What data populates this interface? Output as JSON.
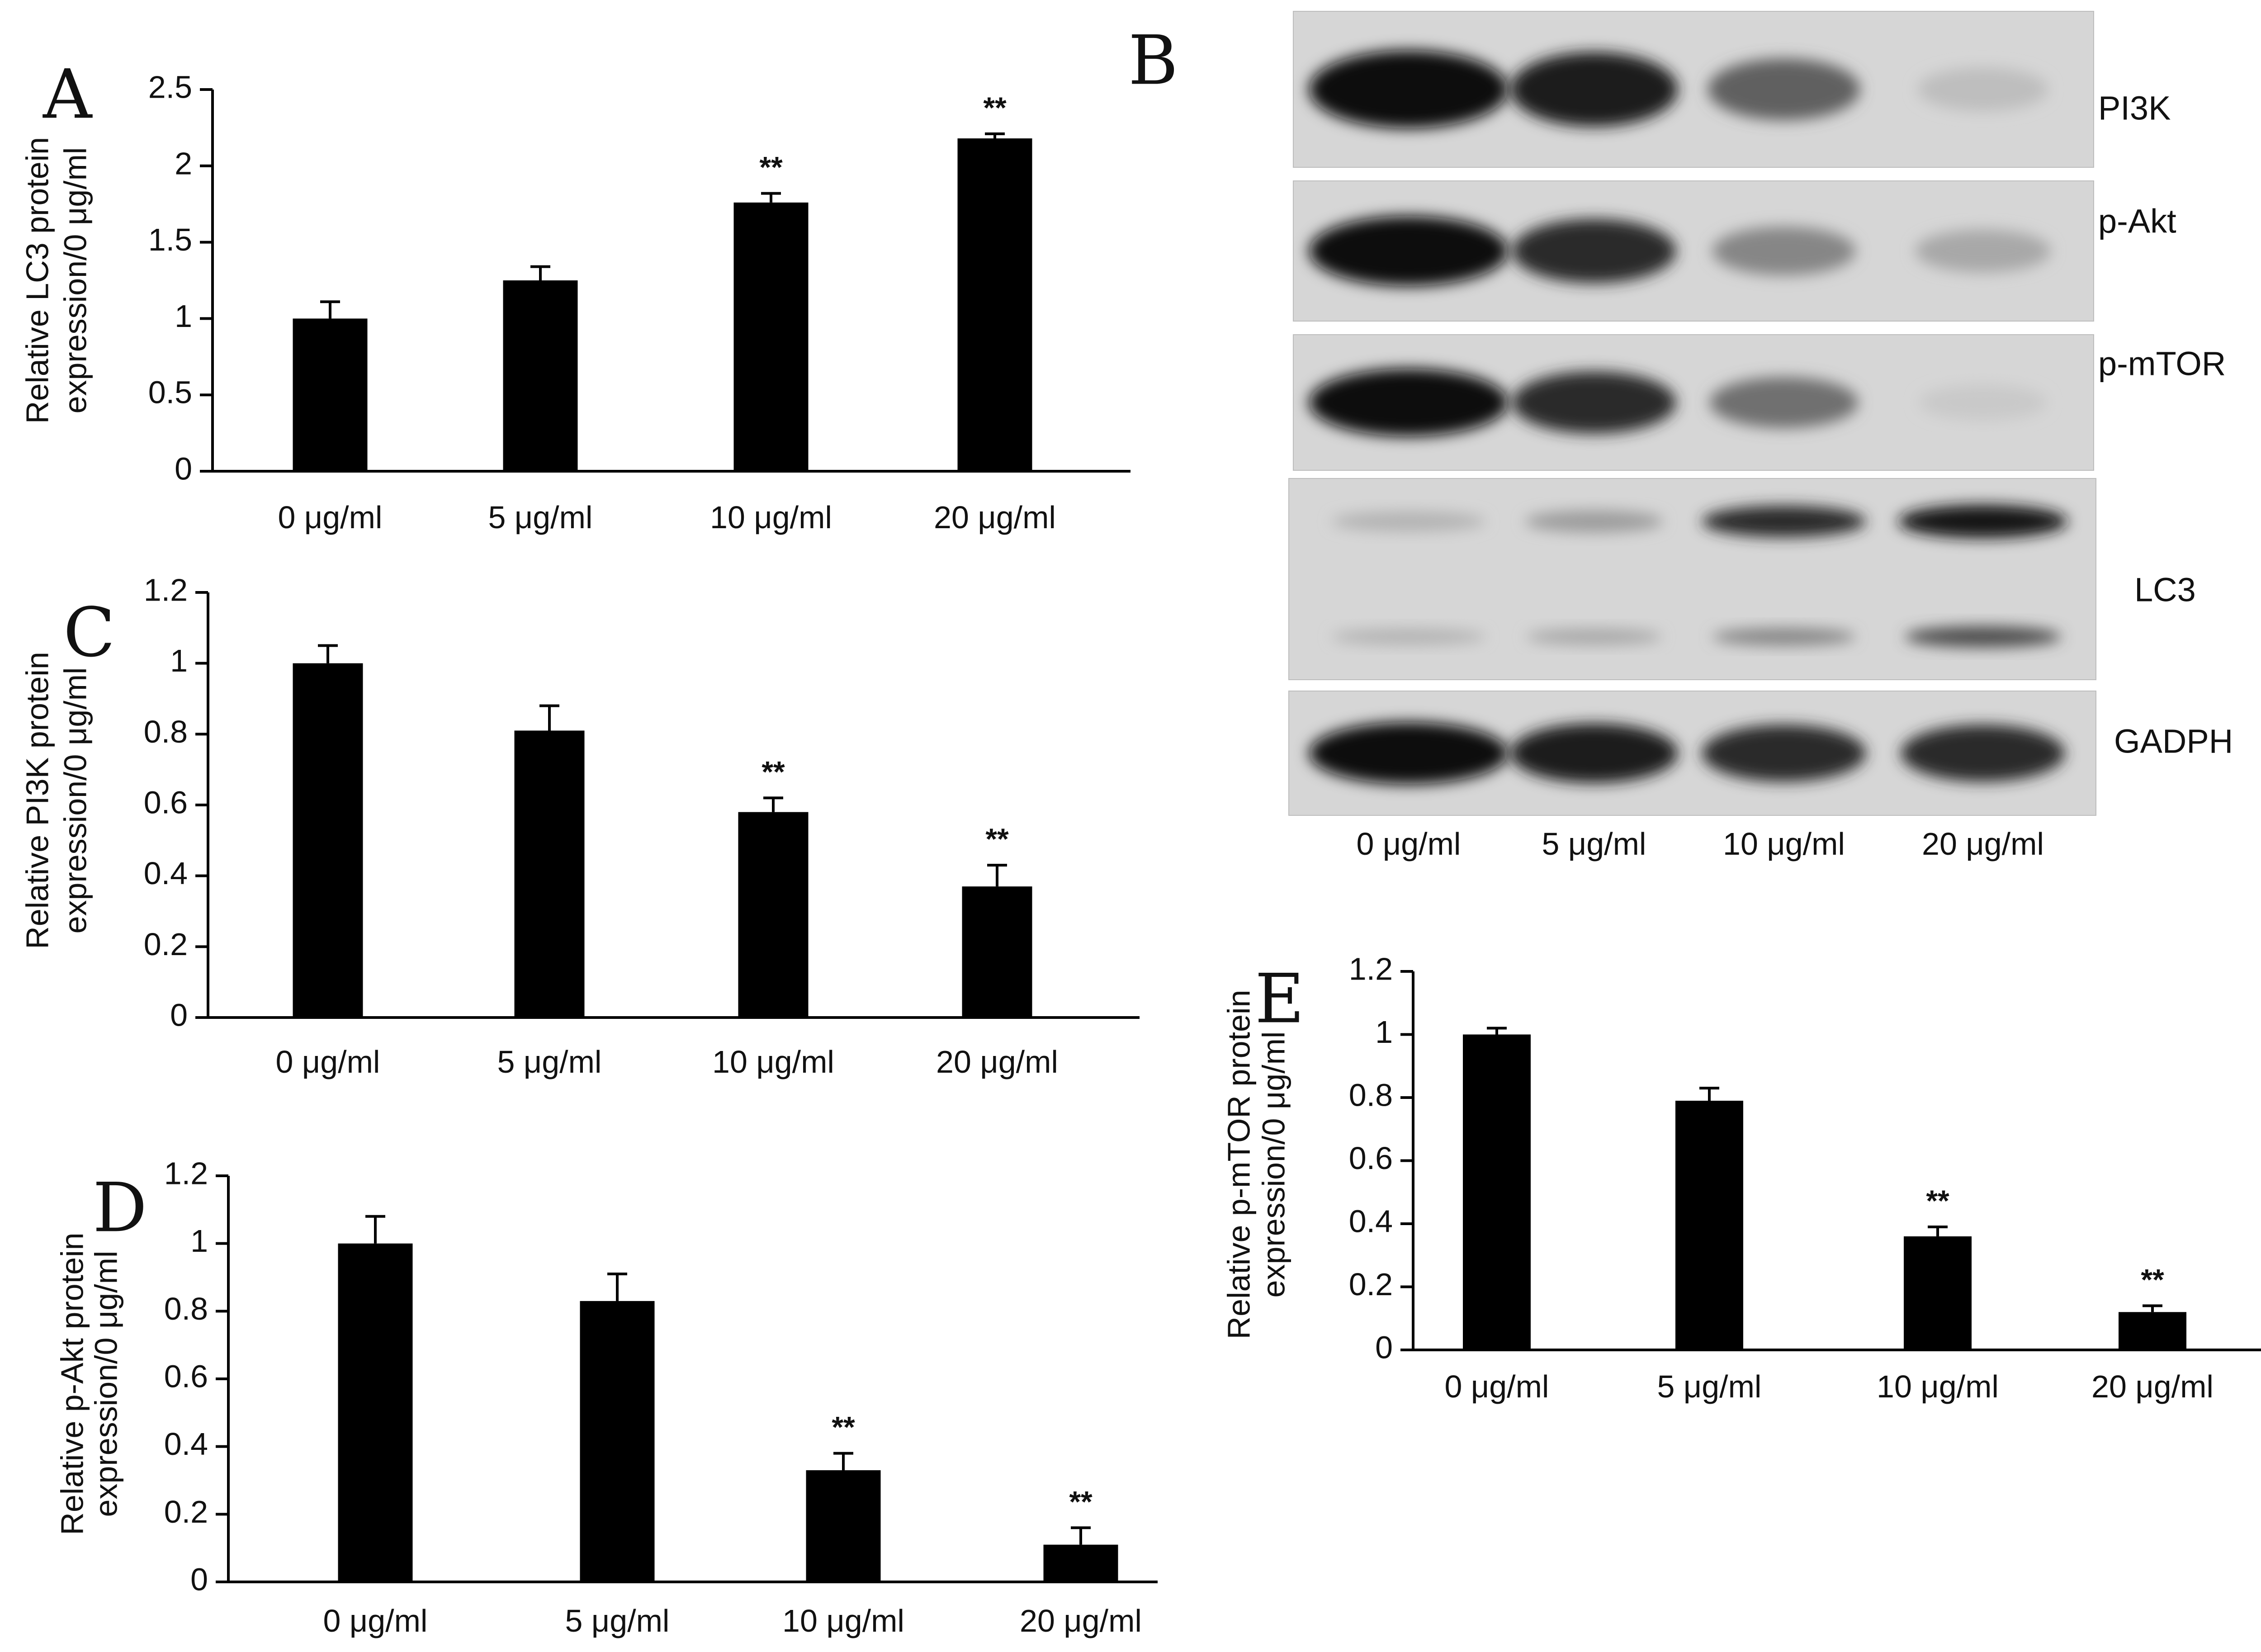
{
  "chart_data": [
    {
      "panel": "A",
      "type": "bar",
      "ylabel_lines": [
        "Relative LC3 protein",
        "expression/0 μg/ml"
      ],
      "categories": [
        "0 μg/ml",
        "5 μg/ml",
        "10 μg/ml",
        "20 μg/ml"
      ],
      "values": [
        1.0,
        1.25,
        1.76,
        2.18
      ],
      "errors": [
        0.11,
        0.09,
        0.06,
        0.03
      ],
      "significance": [
        "",
        "",
        "**",
        "**"
      ],
      "ylim": [
        0,
        2.5
      ],
      "yticks": [
        "0",
        "0.5",
        "1",
        "1.5",
        "2",
        "2.5"
      ]
    },
    {
      "panel": "C",
      "type": "bar",
      "ylabel_lines": [
        "Relative PI3K protein",
        "expression/0 μg/ml"
      ],
      "categories": [
        "0  μg/ml",
        "5  μg/ml",
        "10  μg/ml",
        "20  μg/ml"
      ],
      "values": [
        1.0,
        0.81,
        0.58,
        0.37
      ],
      "errors": [
        0.05,
        0.07,
        0.04,
        0.06
      ],
      "significance": [
        "",
        "",
        "**",
        "**"
      ],
      "ylim": [
        0,
        1.2
      ],
      "yticks": [
        "0",
        "0.2",
        "0.4",
        "0.6",
        "0.8",
        "1",
        "1.2"
      ]
    },
    {
      "panel": "D",
      "type": "bar",
      "ylabel_lines": [
        "Relative p-Akt protein",
        "expression/0 μg/ml"
      ],
      "categories": [
        "0 μg/ml",
        "5 μg/ml",
        "10  μg/ml",
        "20 μg/ml"
      ],
      "values": [
        1.0,
        0.83,
        0.33,
        0.11
      ],
      "errors": [
        0.08,
        0.08,
        0.05,
        0.05
      ],
      "significance": [
        "",
        "",
        "**",
        "**"
      ],
      "ylim": [
        0,
        1.2
      ],
      "yticks": [
        "0",
        "0.2",
        "0.4",
        "0.6",
        "0.8",
        "1",
        "1.2"
      ]
    },
    {
      "panel": "E",
      "type": "bar",
      "ylabel_lines": [
        "Relative p-mTOR protein",
        "expression/0 μg/ml"
      ],
      "categories": [
        "0 μg/ml",
        "5 μg/ml",
        "10 μg/ml",
        "20  μg/ml"
      ],
      "values": [
        1.0,
        0.79,
        0.36,
        0.12
      ],
      "errors": [
        0.02,
        0.04,
        0.03,
        0.02
      ],
      "significance": [
        "",
        "",
        "**",
        "**"
      ],
      "ylim": [
        0,
        1.2
      ],
      "yticks": [
        "0",
        "0.2",
        "0.4",
        "0.6",
        "0.8",
        "1",
        "1.2"
      ]
    }
  ],
  "blot": {
    "panel": "B",
    "rows": [
      {
        "label": "PI3K",
        "bands": [
          1.0,
          0.92,
          0.62,
          0.2
        ]
      },
      {
        "label": "p-Akt",
        "bands": [
          1.0,
          0.85,
          0.45,
          0.3
        ]
      },
      {
        "label": "p-mTOR",
        "bands": [
          1.0,
          0.85,
          0.55,
          0.15
        ]
      },
      {
        "label": "LC3",
        "upper_bands": [
          0.25,
          0.35,
          0.85,
          0.95
        ],
        "lower_bands": [
          0.25,
          0.3,
          0.45,
          0.7
        ]
      },
      {
        "label": "GADPH",
        "bands": [
          1.0,
          0.92,
          0.85,
          0.85
        ]
      }
    ],
    "lanes": [
      "0 μg/ml",
      "5  μg/ml",
      "10 μg/ml",
      "20 μg/ml"
    ]
  }
}
